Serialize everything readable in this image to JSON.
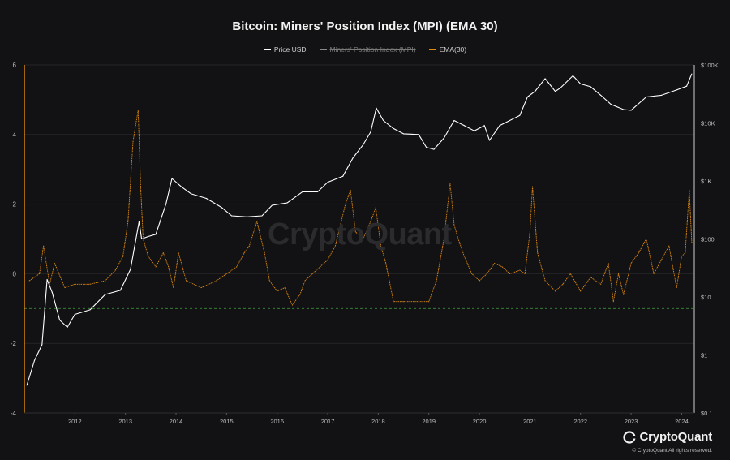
{
  "page": {
    "brand_name": "CryptoQuant",
    "watermark": "CryptoQuant",
    "copyright": "© CryptoQuant All rights reserved."
  },
  "chart_data": {
    "type": "line",
    "title": "Bitcoin: Miners' Position Index (MPI) (EMA 30)",
    "legend": [
      {
        "name": "Price USD",
        "color": "#ffffff",
        "enabled": true
      },
      {
        "name": "Miners' Position Index (MPI)",
        "color": "#ffffff",
        "enabled": false
      },
      {
        "name": "EMA(30)",
        "color": "#e08a10",
        "enabled": true
      }
    ],
    "legend_position": "top-center",
    "x_ticks": [
      "2012",
      "2013",
      "2014",
      "2015",
      "2016",
      "2017",
      "2018",
      "2019",
      "2020",
      "2021",
      "2022",
      "2023",
      "2024"
    ],
    "x_range": [
      2011.0,
      2024.25
    ],
    "y_left": {
      "range": [
        -4,
        6
      ],
      "ticks": [
        "6",
        "4",
        "2",
        "0",
        "-2",
        "-4"
      ]
    },
    "y_right": {
      "scale": "log",
      "range_usd": [
        0.1,
        100000
      ],
      "ticks": [
        "$100K",
        "$10K",
        "$1K",
        "$100",
        "$10",
        "$1",
        "$0.1"
      ]
    },
    "reference_lines": [
      {
        "axis": "left",
        "value": 2,
        "color": "#b23a3a",
        "style": "dashed"
      },
      {
        "axis": "left",
        "value": -1,
        "color": "#3a8a3a",
        "style": "dashed"
      }
    ],
    "grid": true,
    "series": [
      {
        "name": "Price USD",
        "axis": "right",
        "color": "#ffffff",
        "x": [
          2011.05,
          2011.2,
          2011.35,
          2011.45,
          2011.55,
          2011.7,
          2011.85,
          2012.0,
          2012.3,
          2012.6,
          2012.9,
          2013.1,
          2013.27,
          2013.32,
          2013.45,
          2013.6,
          2013.8,
          2013.92,
          2014.1,
          2014.3,
          2014.6,
          2014.9,
          2015.1,
          2015.4,
          2015.7,
          2015.9,
          2016.2,
          2016.5,
          2016.8,
          2017.0,
          2017.3,
          2017.5,
          2017.7,
          2017.85,
          2017.96,
          2018.1,
          2018.3,
          2018.5,
          2018.8,
          2018.95,
          2019.1,
          2019.3,
          2019.5,
          2019.7,
          2019.9,
          2020.1,
          2020.2,
          2020.4,
          2020.6,
          2020.8,
          2020.95,
          2021.1,
          2021.3,
          2021.5,
          2021.6,
          2021.85,
          2022.0,
          2022.2,
          2022.4,
          2022.6,
          2022.85,
          2023.0,
          2023.3,
          2023.6,
          2023.9,
          2024.1,
          2024.2
        ],
        "values": [
          0.3,
          0.8,
          1.5,
          20,
          12,
          4,
          3,
          5,
          6,
          11,
          13,
          30,
          200,
          100,
          110,
          120,
          400,
          1100,
          800,
          600,
          500,
          350,
          250,
          240,
          250,
          380,
          420,
          650,
          650,
          950,
          1200,
          2500,
          4200,
          7000,
          18000,
          11000,
          8000,
          6500,
          6300,
          3800,
          3500,
          5500,
          11000,
          9000,
          7300,
          9000,
          5000,
          9000,
          11000,
          13500,
          28000,
          35000,
          58000,
          35000,
          40000,
          65000,
          47000,
          42000,
          30000,
          21000,
          17000,
          16500,
          28000,
          30000,
          37000,
          43000,
          70000
        ]
      },
      {
        "name": "EMA(30)",
        "axis": "left",
        "color": "#e08a10",
        "x": [
          2011.1,
          2011.3,
          2011.38,
          2011.5,
          2011.6,
          2011.8,
          2012.0,
          2012.3,
          2012.6,
          2012.8,
          2012.95,
          2013.05,
          2013.15,
          2013.25,
          2013.3,
          2013.35,
          2013.45,
          2013.6,
          2013.75,
          2013.85,
          2013.95,
          2014.05,
          2014.2,
          2014.5,
          2014.8,
          2015.0,
          2015.2,
          2015.35,
          2015.45,
          2015.6,
          2015.75,
          2015.85,
          2016.0,
          2016.15,
          2016.3,
          2016.45,
          2016.55,
          2016.7,
          2016.85,
          2017.0,
          2017.15,
          2017.35,
          2017.45,
          2017.55,
          2017.7,
          2017.85,
          2017.95,
          2018.05,
          2018.15,
          2018.3,
          2018.5,
          2018.8,
          2019.0,
          2019.15,
          2019.3,
          2019.42,
          2019.5,
          2019.58,
          2019.7,
          2019.85,
          2020.0,
          2020.15,
          2020.3,
          2020.45,
          2020.6,
          2020.8,
          2020.9,
          2021.0,
          2021.05,
          2021.15,
          2021.3,
          2021.5,
          2021.65,
          2021.8,
          2022.0,
          2022.2,
          2022.4,
          2022.55,
          2022.65,
          2022.75,
          2022.85,
          2023.0,
          2023.15,
          2023.3,
          2023.45,
          2023.6,
          2023.75,
          2023.9,
          2024.0,
          2024.07,
          2024.15,
          2024.2
        ],
        "values": [
          -0.2,
          0.0,
          0.8,
          -0.3,
          0.3,
          -0.4,
          -0.3,
          -0.3,
          -0.2,
          0.1,
          0.5,
          1.5,
          3.8,
          4.7,
          2.5,
          1.0,
          0.5,
          0.2,
          0.6,
          0.2,
          -0.4,
          0.6,
          -0.2,
          -0.4,
          -0.2,
          0.0,
          0.2,
          0.6,
          0.8,
          1.5,
          0.6,
          -0.2,
          -0.5,
          -0.4,
          -0.9,
          -0.6,
          -0.2,
          0.0,
          0.2,
          0.4,
          0.8,
          2.0,
          2.4,
          1.2,
          1.0,
          1.5,
          1.9,
          0.8,
          0.3,
          -0.8,
          -0.8,
          -0.8,
          -0.8,
          -0.2,
          1.0,
          2.6,
          1.4,
          1.0,
          0.5,
          0.0,
          -0.2,
          0.0,
          0.3,
          0.2,
          0.0,
          0.1,
          0.0,
          1.2,
          2.5,
          0.6,
          -0.2,
          -0.5,
          -0.3,
          0.0,
          -0.5,
          -0.1,
          -0.3,
          0.3,
          -0.8,
          0.0,
          -0.6,
          0.3,
          0.6,
          1.0,
          0.0,
          0.4,
          0.8,
          -0.4,
          0.5,
          0.6,
          2.4,
          0.9
        ]
      }
    ]
  }
}
